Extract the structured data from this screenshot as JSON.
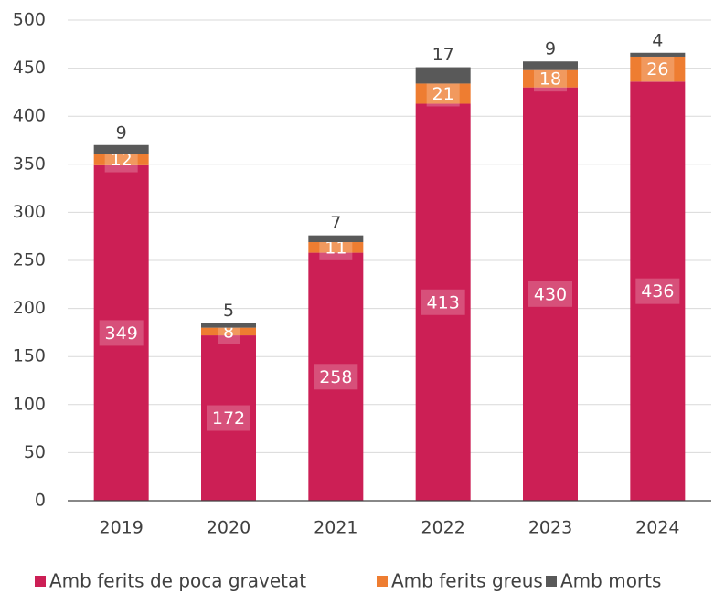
{
  "chart_data": {
    "type": "stacked_bar",
    "categories": [
      "2019",
      "2020",
      "2021",
      "2022",
      "2023",
      "2024"
    ],
    "series": [
      {
        "name": "Amb ferits de poca gravetat",
        "color": "#cc1f55",
        "values": [
          349,
          172,
          258,
          413,
          430,
          436
        ]
      },
      {
        "name": "Amb ferits greus",
        "color": "#ee7d31",
        "values": [
          12,
          8,
          11,
          21,
          18,
          26
        ]
      },
      {
        "name": "Amb morts",
        "color": "#595959",
        "values": [
          9,
          5,
          7,
          17,
          9,
          4
        ]
      }
    ],
    "ylim": [
      0,
      500
    ],
    "yticks": [
      0,
      50,
      100,
      150,
      200,
      250,
      300,
      350,
      400,
      450,
      500
    ],
    "grid": true,
    "legend": "bottom"
  }
}
